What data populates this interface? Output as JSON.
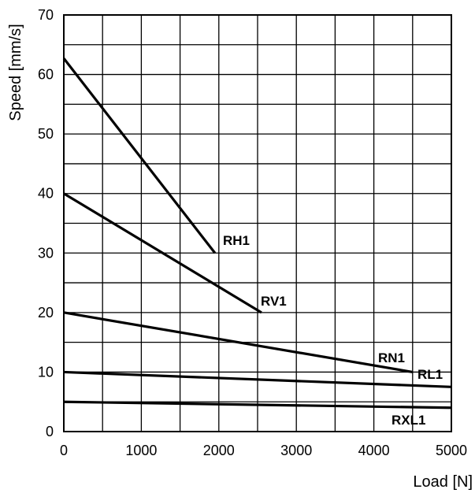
{
  "chart_data": {
    "type": "line",
    "title": "",
    "xlabel": "Load [N]",
    "ylabel": "Speed [mm/s]",
    "xlim": [
      0,
      5000
    ],
    "ylim": [
      0,
      70
    ],
    "x_ticks": [
      0,
      1000,
      2000,
      3000,
      4000,
      5000
    ],
    "y_ticks": [
      0,
      10,
      20,
      30,
      40,
      50,
      60,
      70
    ],
    "x_minor_step": 500,
    "y_minor_step": 5,
    "grid": true,
    "legend": "none (series labelled inline)",
    "series": [
      {
        "name": "RH1",
        "x": [
          0,
          1950
        ],
        "y": [
          62.7,
          30
        ]
      },
      {
        "name": "RV1",
        "x": [
          0,
          2550
        ],
        "y": [
          40,
          20
        ]
      },
      {
        "name": "RN1",
        "x": [
          0,
          4500
        ],
        "y": [
          20,
          10
        ]
      },
      {
        "name": "RL1",
        "x": [
          0,
          5000
        ],
        "y": [
          10,
          7.5
        ]
      },
      {
        "name": "RXL1",
        "x": [
          0,
          5000
        ],
        "y": [
          5,
          4
        ]
      }
    ]
  }
}
